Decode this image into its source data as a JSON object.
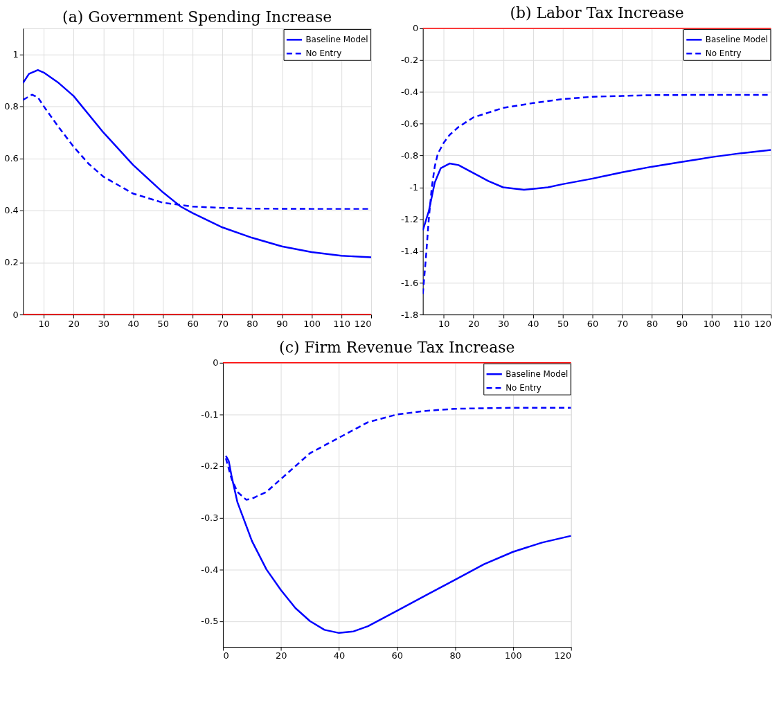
{
  "chart_data": [
    {
      "type": "line",
      "title": "(a) Government Spending Increase",
      "xlim": [
        3,
        120
      ],
      "xticks": [
        10,
        20,
        30,
        40,
        50,
        60,
        70,
        80,
        90,
        100,
        110,
        120
      ],
      "ylim": [
        0,
        1.1
      ],
      "yticks": [
        0,
        0.2,
        0.4,
        0.6,
        0.8,
        1
      ],
      "grid": true,
      "legend": "top right",
      "marker": "none",
      "ref_lines": [
        {
          "axis": "y",
          "value": 0,
          "color": "#ff0000"
        }
      ],
      "series": [
        {
          "name": "Baseline Model",
          "color": "#0000ff",
          "line_style": "solid",
          "x": [
            3,
            5,
            8,
            10,
            15,
            20,
            30,
            40,
            50,
            56,
            60,
            70,
            80,
            90,
            100,
            110,
            120
          ],
          "values": [
            0.89,
            0.925,
            0.94,
            0.93,
            0.89,
            0.84,
            0.7,
            0.575,
            0.47,
            0.415,
            0.39,
            0.335,
            0.295,
            0.262,
            0.24,
            0.226,
            0.22
          ]
        },
        {
          "name": "No Entry",
          "color": "#0000ff",
          "line_style": "dashed",
          "x": [
            3,
            6,
            8,
            10,
            15,
            20,
            25,
            30,
            40,
            50,
            60,
            70,
            80,
            100,
            120
          ],
          "values": [
            0.825,
            0.845,
            0.835,
            0.8,
            0.72,
            0.645,
            0.58,
            0.53,
            0.465,
            0.43,
            0.415,
            0.41,
            0.407,
            0.406,
            0.406
          ]
        }
      ]
    },
    {
      "type": "line",
      "title": "(b) Labor Tax Increase",
      "xlim": [
        3,
        120
      ],
      "xticks": [
        10,
        20,
        30,
        40,
        50,
        60,
        70,
        80,
        90,
        100,
        110,
        120
      ],
      "ylim": [
        -1.8,
        0
      ],
      "yticks": [
        -1.8,
        -1.6,
        -1.4,
        -1.2,
        -1,
        -0.8,
        -0.6,
        -0.4,
        -0.2,
        0
      ],
      "grid": true,
      "legend": "top right",
      "marker": "none",
      "ref_lines": [
        {
          "axis": "y",
          "value": 0,
          "color": "#ff0000"
        }
      ],
      "series": [
        {
          "name": "Baseline Model",
          "color": "#0000ff",
          "line_style": "solid",
          "x": [
            3,
            5,
            7,
            9,
            12,
            15,
            20,
            25,
            30,
            37,
            45,
            50,
            60,
            70,
            80,
            90,
            100,
            110,
            120
          ],
          "values": [
            -1.27,
            -1.15,
            -0.97,
            -0.88,
            -0.85,
            -0.86,
            -0.91,
            -0.96,
            -1.0,
            -1.015,
            -1.0,
            -0.98,
            -0.945,
            -0.905,
            -0.87,
            -0.84,
            -0.81,
            -0.785,
            -0.765
          ]
        },
        {
          "name": "No Entry",
          "color": "#0000ff",
          "line_style": "dashed",
          "x": [
            3,
            4,
            5,
            6,
            7,
            8,
            10,
            12,
            15,
            20,
            25,
            30,
            40,
            50,
            60,
            70,
            80,
            100,
            120
          ],
          "values": [
            -1.67,
            -1.45,
            -1.2,
            -1.0,
            -0.87,
            -0.79,
            -0.72,
            -0.67,
            -0.62,
            -0.56,
            -0.53,
            -0.5,
            -0.47,
            -0.445,
            -0.43,
            -0.425,
            -0.42,
            -0.418,
            -0.418
          ]
        }
      ]
    },
    {
      "type": "line",
      "title": "(c) Firm Revenue Tax Increase",
      "xlim": [
        0,
        120
      ],
      "xticks": [
        0,
        20,
        40,
        60,
        80,
        100,
        120
      ],
      "ylim": [
        -0.55,
        0
      ],
      "yticks": [
        -0.5,
        -0.4,
        -0.3,
        -0.2,
        -0.1,
        0
      ],
      "grid": true,
      "legend": "top right",
      "marker": "none",
      "ref_lines": [
        {
          "axis": "y",
          "value": 0,
          "color": "#ff0000"
        }
      ],
      "series": [
        {
          "name": "Baseline Model",
          "color": "#0000ff",
          "line_style": "solid",
          "x": [
            1,
            2,
            3,
            5,
            10,
            15,
            20,
            25,
            30,
            35,
            40,
            45,
            50,
            60,
            70,
            80,
            90,
            100,
            110,
            120
          ],
          "values": [
            -0.18,
            -0.19,
            -0.22,
            -0.27,
            -0.345,
            -0.4,
            -0.44,
            -0.475,
            -0.5,
            -0.517,
            -0.523,
            -0.52,
            -0.51,
            -0.48,
            -0.45,
            -0.42,
            -0.39,
            -0.366,
            -0.348,
            -0.335
          ]
        },
        {
          "name": "No Entry",
          "color": "#0000ff",
          "line_style": "dashed",
          "x": [
            1,
            2,
            3,
            5,
            8,
            10,
            15,
            20,
            25,
            30,
            40,
            50,
            60,
            70,
            80,
            100,
            120
          ],
          "values": [
            -0.185,
            -0.205,
            -0.225,
            -0.25,
            -0.265,
            -0.263,
            -0.25,
            -0.225,
            -0.2,
            -0.175,
            -0.145,
            -0.115,
            -0.1,
            -0.093,
            -0.089,
            -0.087,
            -0.087
          ]
        }
      ]
    }
  ]
}
